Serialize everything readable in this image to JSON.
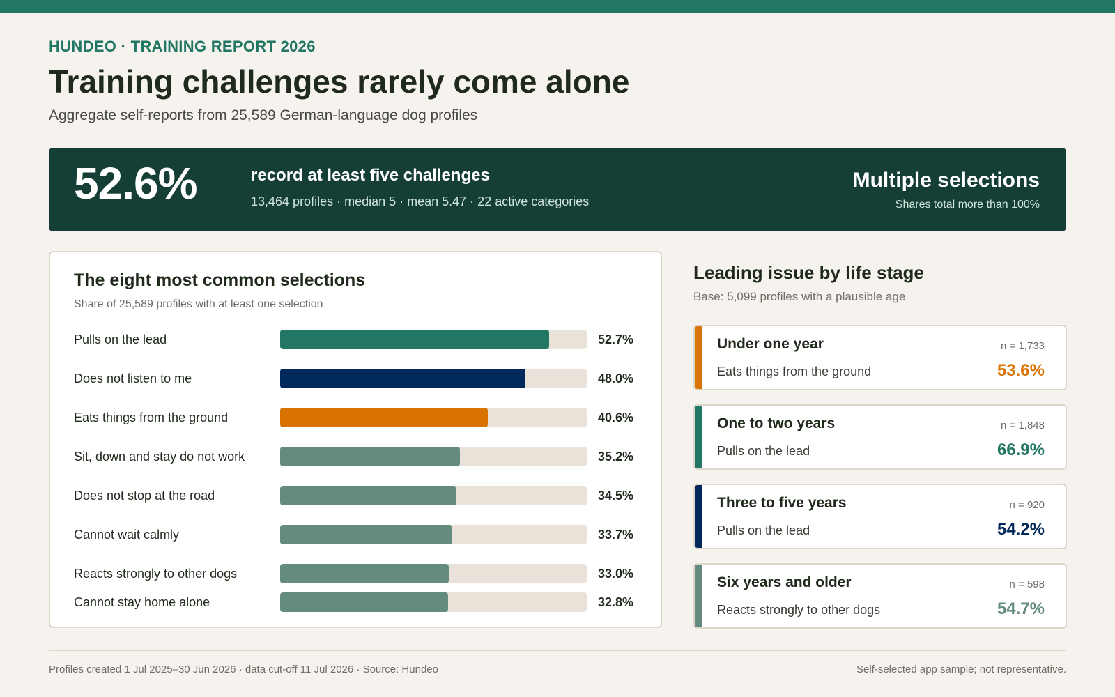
{
  "header": {
    "eyebrow": "HUNDEO · TRAINING REPORT 2026",
    "title": "Training challenges rarely come alone",
    "subtitle": "Aggregate self-reports from 25,589 German-language dog profiles"
  },
  "banner": {
    "kpi": "52.6%",
    "kpi_label": "record at least five challenges",
    "kpi_detail": "13,464 profiles · median 5 · mean 5.47 · 22 active categories",
    "right_title": "Multiple selections",
    "right_sub": "Shares total more than 100%"
  },
  "colors": {
    "brand": "#227664",
    "dark": "#153f36",
    "navy": "#00285a",
    "orange": "#d97404",
    "muted": "#648c7e",
    "track": "#e8e2d9"
  },
  "chart_data": {
    "type": "bar",
    "orientation": "horizontal",
    "title": "The eight most common selections",
    "subtitle": "Share of 25,589 profiles with at least one selection",
    "categories": [
      "Pulls on the lead",
      "Does not listen to me",
      "Eats things from the ground",
      "Sit, down and stay do not work",
      "Does not stop at the road",
      "Cannot wait calmly",
      "Reacts strongly to other dogs",
      "Cannot stay home alone"
    ],
    "values": [
      52.7,
      48.0,
      40.6,
      35.2,
      34.5,
      33.7,
      33.0,
      32.8
    ],
    "value_labels": [
      "52.7%",
      "48.0%",
      "40.6%",
      "35.2%",
      "34.5%",
      "33.7%",
      "33.0%",
      "32.8%"
    ],
    "bar_colors": [
      "#227664",
      "#00285a",
      "#d97404",
      "#648c7e",
      "#648c7e",
      "#648c7e",
      "#648c7e",
      "#648c7e"
    ],
    "xlim": [
      0,
      60
    ],
    "unit": "%",
    "grid": false,
    "legend": "none"
  },
  "life_stage": {
    "title": "Leading issue by life stage",
    "subtitle": "Base: 5,099 profiles with a plausible age",
    "stages": [
      {
        "name": "Under one year",
        "n": "n = 1,733",
        "issue": "Eats things from the ground",
        "value": "53.6%",
        "color": "#d97404"
      },
      {
        "name": "One to two years",
        "n": "n = 1,848",
        "issue": "Pulls on the lead",
        "value": "66.9%",
        "color": "#227664"
      },
      {
        "name": "Three to five years",
        "n": "n = 920",
        "issue": "Pulls on the lead",
        "value": "54.2%",
        "color": "#00285a"
      },
      {
        "name": "Six years and older",
        "n": "n = 598",
        "issue": "Reacts strongly to other dogs",
        "value": "54.7%",
        "color": "#648c7e"
      }
    ]
  },
  "footer": {
    "left": "Profiles created 1 Jul 2025–30 Jun 2026 · data cut-off 11 Jul 2026 · Source: Hundeo",
    "right": "Self-selected app sample; not representative."
  }
}
